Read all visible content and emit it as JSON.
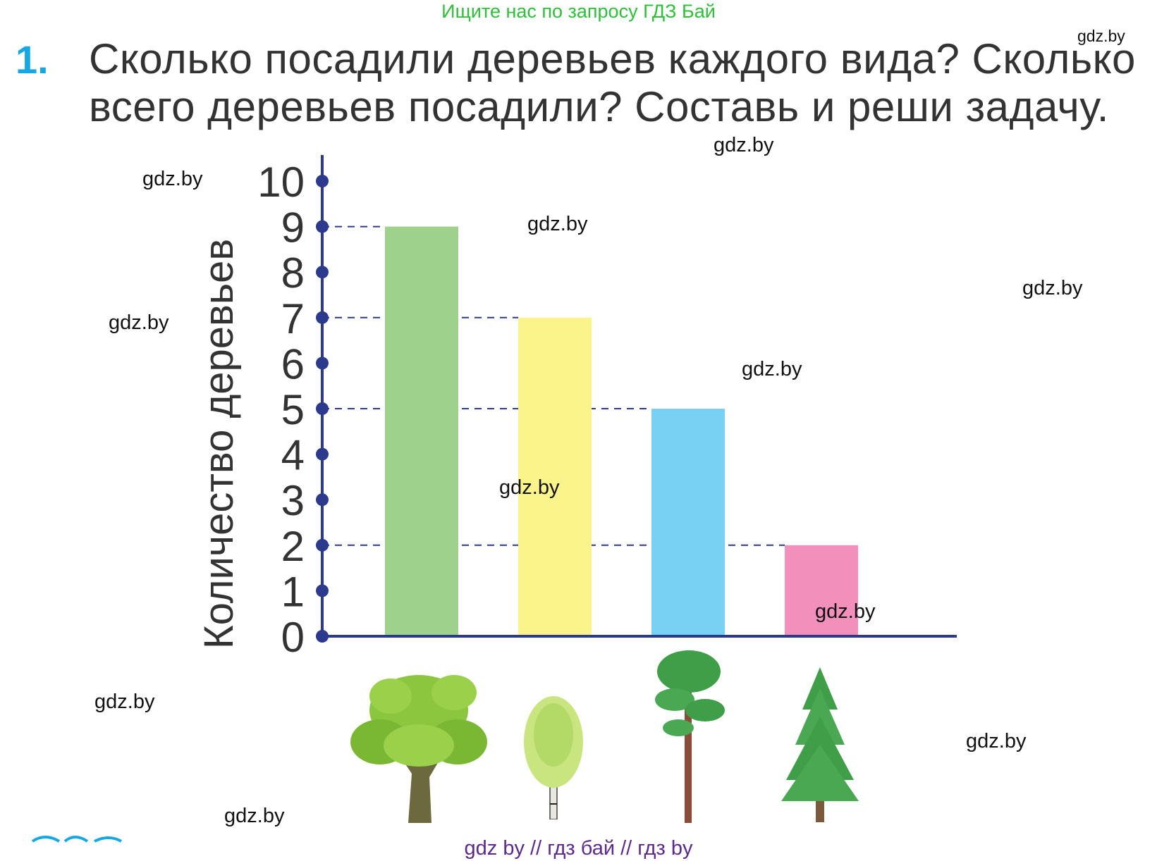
{
  "banner": "Ищите нас по запросу ГДЗ Бай",
  "task": {
    "number": "1.",
    "text": "Сколько посадили деревьев каждого вида? Сколько всего деревьев посадили? Составь и реши задачу."
  },
  "watermark": "gdz.by",
  "footer": "gdz by  //  гдз бай  //  гдз by",
  "colors": {
    "axis": "#2b3a8c",
    "task_number": "#17a8e3",
    "banner": "#2fbf3a",
    "footer": "#5b2a8c"
  },
  "chart_data": {
    "type": "bar",
    "ylabel": "Количество деревьев",
    "ylim": [
      0,
      10
    ],
    "yticks": [
      "0",
      "1",
      "2",
      "3",
      "4",
      "5",
      "6",
      "7",
      "8",
      "9",
      "10"
    ],
    "categories": [
      "oak-tree-icon",
      "birch-tree-icon",
      "pine-tree-icon",
      "spruce-tree-icon"
    ],
    "values": [
      9,
      7,
      5,
      2
    ],
    "bar_colors": [
      "#9ed18c",
      "#fbf48a",
      "#78d1f3",
      "#f28fbb"
    ],
    "dashed_guides": true
  }
}
